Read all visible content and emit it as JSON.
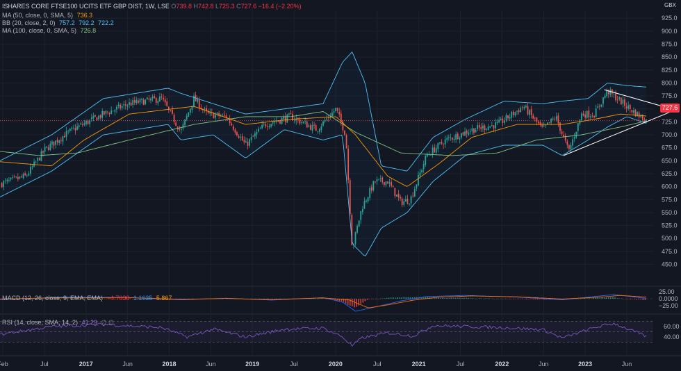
{
  "header": {
    "symbol": "ISHARES CORE FTSE100 UCITS ETF GBP DIST, 1W, LSE",
    "o_label": "O",
    "o": "739.8",
    "h_label": "H",
    "h": "742.8",
    "l_label": "L",
    "l": "725.3",
    "c_label": "C",
    "c": "727.6",
    "change": "−16.4 (−2.20%)",
    "currency": "GBX"
  },
  "legends": {
    "ma50": {
      "label": "MA (50, close, 0, SMA, 5)",
      "value": "736.3"
    },
    "bb": {
      "label": "BB (20, close, 2, 0)",
      "basis": "757.2",
      "upper": "792.2",
      "lower": "722.2"
    },
    "ma100": {
      "label": "MA (100, close, 0, SMA, 5)",
      "value": "726.8"
    },
    "macd": {
      "label": "MACD (12, 26, close, 9, EMA, EMA)",
      "hist": "−4.7038",
      "macd": "1.1635",
      "signal": "5.867"
    },
    "rsi": {
      "label": "RSI (14, close, SMA, 14, 2)",
      "value": "41.29",
      "extra": "∅ ∅"
    }
  },
  "last_price_tag": "727.6",
  "colors": {
    "background": "#131722",
    "up": "#26a69a",
    "down": "#ef5350",
    "ma50": "#ff9800",
    "bb": "#4fc3f7",
    "ma100": "#81c784",
    "macd": "#2962ff",
    "signal": "#ff6d00",
    "rsi": "#7e57c2",
    "triangle": "#ffffff",
    "last_price": "#f23645"
  },
  "chart_data": [
    {
      "type": "candlestick",
      "title": "ISHARES CORE FTSE100 UCITS ETF GBP DIST, 1W, LSE",
      "y_ticks": [
        "450.0",
        "475.0",
        "500.0",
        "525.0",
        "550.0",
        "575.0",
        "600.0",
        "625.0",
        "650.0",
        "675.0",
        "700.0",
        "725.0",
        "750.0",
        "775.0",
        "800.0",
        "825.0",
        "850.0",
        "875.0",
        "900.0",
        "925.0"
      ],
      "ylim": [
        440,
        940
      ],
      "x_ticks": [
        "Feb",
        "Jul",
        "2017",
        "Jun",
        "2018",
        "Jun",
        "2019",
        "Jul",
        "2020",
        "Jul",
        "2021",
        "Jul",
        "2022",
        "Jun",
        "2023",
        "Jun"
      ],
      "last_price": 727.6,
      "close_anchors": [
        {
          "t": 0.0,
          "v": 605
        },
        {
          "t": 0.04,
          "v": 620
        },
        {
          "t": 0.07,
          "v": 672
        },
        {
          "t": 0.1,
          "v": 700
        },
        {
          "t": 0.12,
          "v": 715
        },
        {
          "t": 0.16,
          "v": 740
        },
        {
          "t": 0.2,
          "v": 760
        },
        {
          "t": 0.25,
          "v": 770
        },
        {
          "t": 0.28,
          "v": 706
        },
        {
          "t": 0.3,
          "v": 770
        },
        {
          "t": 0.32,
          "v": 740
        },
        {
          "t": 0.35,
          "v": 735
        },
        {
          "t": 0.38,
          "v": 680
        },
        {
          "t": 0.41,
          "v": 720
        },
        {
          "t": 0.45,
          "v": 735
        },
        {
          "t": 0.49,
          "v": 710
        },
        {
          "t": 0.52,
          "v": 750
        },
        {
          "t": 0.535,
          "v": 700
        },
        {
          "t": 0.545,
          "v": 480
        },
        {
          "t": 0.56,
          "v": 560
        },
        {
          "t": 0.58,
          "v": 610
        },
        {
          "t": 0.6,
          "v": 610
        },
        {
          "t": 0.62,
          "v": 570
        },
        {
          "t": 0.635,
          "v": 575
        },
        {
          "t": 0.66,
          "v": 660
        },
        {
          "t": 0.69,
          "v": 690
        },
        {
          "t": 0.73,
          "v": 710
        },
        {
          "t": 0.77,
          "v": 720
        },
        {
          "t": 0.81,
          "v": 755
        },
        {
          "t": 0.84,
          "v": 710
        },
        {
          "t": 0.86,
          "v": 735
        },
        {
          "t": 0.88,
          "v": 668
        },
        {
          "t": 0.9,
          "v": 740
        },
        {
          "t": 0.92,
          "v": 740
        },
        {
          "t": 0.94,
          "v": 785
        },
        {
          "t": 0.96,
          "v": 765
        },
        {
          "t": 0.98,
          "v": 745
        },
        {
          "t": 1.0,
          "v": 727.6
        }
      ],
      "bollinger_anchors": [
        {
          "t": 0.0,
          "u": 650,
          "l": 580
        },
        {
          "t": 0.08,
          "u": 700,
          "l": 630
        },
        {
          "t": 0.16,
          "u": 770,
          "l": 700
        },
        {
          "t": 0.26,
          "u": 790,
          "l": 720
        },
        {
          "t": 0.28,
          "u": 780,
          "l": 690
        },
        {
          "t": 0.33,
          "u": 760,
          "l": 700
        },
        {
          "t": 0.38,
          "u": 740,
          "l": 655
        },
        {
          "t": 0.44,
          "u": 750,
          "l": 710
        },
        {
          "t": 0.5,
          "u": 760,
          "l": 690
        },
        {
          "t": 0.53,
          "u": 840,
          "l": 700
        },
        {
          "t": 0.545,
          "u": 860,
          "l": 490
        },
        {
          "t": 0.565,
          "u": 800,
          "l": 465
        },
        {
          "t": 0.59,
          "u": 640,
          "l": 520
        },
        {
          "t": 0.63,
          "u": 630,
          "l": 550
        },
        {
          "t": 0.67,
          "u": 695,
          "l": 610
        },
        {
          "t": 0.72,
          "u": 730,
          "l": 660
        },
        {
          "t": 0.78,
          "u": 765,
          "l": 680
        },
        {
          "t": 0.84,
          "u": 760,
          "l": 680
        },
        {
          "t": 0.87,
          "u": 765,
          "l": 660
        },
        {
          "t": 0.91,
          "u": 770,
          "l": 690
        },
        {
          "t": 0.94,
          "u": 800,
          "l": 715
        },
        {
          "t": 0.97,
          "u": 795,
          "l": 735
        },
        {
          "t": 1.0,
          "u": 792.2,
          "l": 722.2
        }
      ],
      "ma50_anchors": [
        {
          "t": 0.0,
          "v": 648
        },
        {
          "t": 0.08,
          "v": 640
        },
        {
          "t": 0.13,
          "v": 690
        },
        {
          "t": 0.2,
          "v": 740
        },
        {
          "t": 0.3,
          "v": 755
        },
        {
          "t": 0.38,
          "v": 720
        },
        {
          "t": 0.45,
          "v": 730
        },
        {
          "t": 0.52,
          "v": 735
        },
        {
          "t": 0.55,
          "v": 700
        },
        {
          "t": 0.6,
          "v": 620
        },
        {
          "t": 0.63,
          "v": 600
        },
        {
          "t": 0.68,
          "v": 645
        },
        {
          "t": 0.73,
          "v": 695
        },
        {
          "t": 0.8,
          "v": 720
        },
        {
          "t": 0.87,
          "v": 720
        },
        {
          "t": 0.92,
          "v": 730
        },
        {
          "t": 0.96,
          "v": 740
        },
        {
          "t": 1.0,
          "v": 736.3
        }
      ],
      "ma100_anchors": [
        {
          "t": 0.0,
          "v": 668
        },
        {
          "t": 0.06,
          "v": 660
        },
        {
          "t": 0.12,
          "v": 665
        },
        {
          "t": 0.2,
          "v": 690
        },
        {
          "t": 0.3,
          "v": 720
        },
        {
          "t": 0.38,
          "v": 735
        },
        {
          "t": 0.45,
          "v": 735
        },
        {
          "t": 0.5,
          "v": 745
        },
        {
          "t": 0.55,
          "v": 705
        },
        {
          "t": 0.62,
          "v": 665
        },
        {
          "t": 0.7,
          "v": 660
        },
        {
          "t": 0.77,
          "v": 665
        },
        {
          "t": 0.83,
          "v": 690
        },
        {
          "t": 0.9,
          "v": 700
        },
        {
          "t": 0.96,
          "v": 715
        },
        {
          "t": 1.0,
          "v": 726.8
        }
      ],
      "triangle": {
        "upper_start": {
          "t": 0.935,
          "v": 787
        },
        "apex": {
          "t": 1.045,
          "v": 748
        },
        "lower_start": {
          "t": 0.872,
          "v": 660
        }
      }
    },
    {
      "type": "line",
      "title": "MACD (12, 26, close, 9, EMA, EMA)",
      "y_ticks": [
        "25.00",
        "0.0000",
        "−25.00"
      ],
      "ylim": [
        -45,
        30
      ],
      "macd_anchors": [
        {
          "t": 0.0,
          "v": -3
        },
        {
          "t": 0.1,
          "v": 6
        },
        {
          "t": 0.2,
          "v": 4
        },
        {
          "t": 0.28,
          "v": -4
        },
        {
          "t": 0.35,
          "v": 2
        },
        {
          "t": 0.42,
          "v": -5
        },
        {
          "t": 0.5,
          "v": 4
        },
        {
          "t": 0.53,
          "v": -12
        },
        {
          "t": 0.55,
          "v": -45
        },
        {
          "t": 0.58,
          "v": -30
        },
        {
          "t": 0.62,
          "v": -8
        },
        {
          "t": 0.66,
          "v": 8
        },
        {
          "t": 0.72,
          "v": 12
        },
        {
          "t": 0.8,
          "v": 6
        },
        {
          "t": 0.87,
          "v": -4
        },
        {
          "t": 0.92,
          "v": 8
        },
        {
          "t": 0.95,
          "v": 15
        },
        {
          "t": 1.0,
          "v": 1.16
        }
      ],
      "signal_anchors": [
        {
          "t": 0.0,
          "v": -1
        },
        {
          "t": 0.1,
          "v": 4
        },
        {
          "t": 0.2,
          "v": 4
        },
        {
          "t": 0.28,
          "v": -2
        },
        {
          "t": 0.35,
          "v": 1
        },
        {
          "t": 0.42,
          "v": -3
        },
        {
          "t": 0.5,
          "v": 3
        },
        {
          "t": 0.54,
          "v": -4
        },
        {
          "t": 0.57,
          "v": -33
        },
        {
          "t": 0.6,
          "v": -22
        },
        {
          "t": 0.64,
          "v": -5
        },
        {
          "t": 0.68,
          "v": 6
        },
        {
          "t": 0.73,
          "v": 10
        },
        {
          "t": 0.8,
          "v": 7
        },
        {
          "t": 0.87,
          "v": -1
        },
        {
          "t": 0.93,
          "v": 6
        },
        {
          "t": 0.96,
          "v": 12
        },
        {
          "t": 1.0,
          "v": 5.87
        }
      ]
    },
    {
      "type": "line",
      "title": "RSI (14, close, SMA, 14, 2)",
      "y_ticks": [
        "60.00",
        "40.00"
      ],
      "ylim": [
        20,
        80
      ],
      "bands": [
        70,
        50,
        30
      ],
      "rsi_anchors": [
        {
          "t": 0.0,
          "v": 45
        },
        {
          "t": 0.08,
          "v": 60
        },
        {
          "t": 0.16,
          "v": 64
        },
        {
          "t": 0.25,
          "v": 58
        },
        {
          "t": 0.29,
          "v": 40
        },
        {
          "t": 0.33,
          "v": 55
        },
        {
          "t": 0.38,
          "v": 40
        },
        {
          "t": 0.44,
          "v": 55
        },
        {
          "t": 0.5,
          "v": 57
        },
        {
          "t": 0.53,
          "v": 40
        },
        {
          "t": 0.545,
          "v": 23
        },
        {
          "t": 0.56,
          "v": 38
        },
        {
          "t": 0.6,
          "v": 48
        },
        {
          "t": 0.64,
          "v": 42
        },
        {
          "t": 0.67,
          "v": 62
        },
        {
          "t": 0.72,
          "v": 60
        },
        {
          "t": 0.78,
          "v": 58
        },
        {
          "t": 0.84,
          "v": 54
        },
        {
          "t": 0.87,
          "v": 38
        },
        {
          "t": 0.92,
          "v": 58
        },
        {
          "t": 0.95,
          "v": 66
        },
        {
          "t": 1.0,
          "v": 41.29
        }
      ]
    }
  ]
}
